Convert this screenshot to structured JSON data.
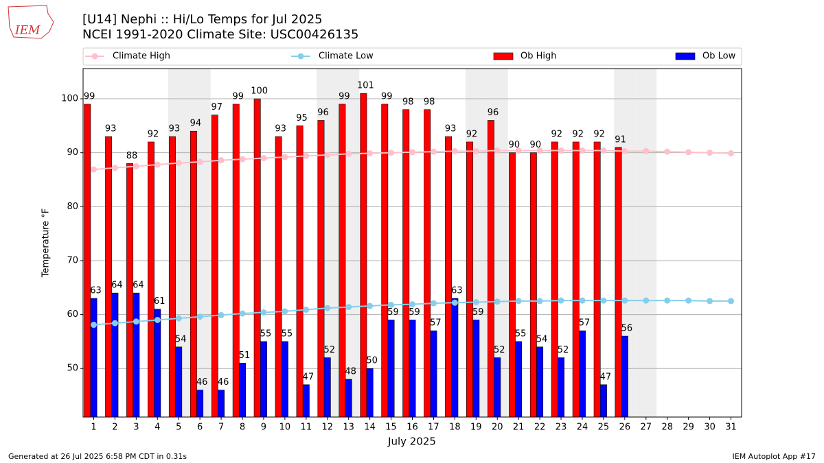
{
  "chart_data": {
    "type": "bar",
    "title": "[U14] Nephi :: Hi/Lo Temps for Jul 2025",
    "subtitle": "NCEI 1991-2020 Climate Site: USC00426135",
    "xlabel": "July 2025",
    "ylabel": "Temperature °F",
    "logo": "IEM",
    "footer_left": "Generated at 26 Jul 2025 6:58 PM CDT in 0.31s",
    "footer_right": "IEM Autoplot App #17",
    "categories": [
      "1",
      "2",
      "3",
      "4",
      "5",
      "6",
      "7",
      "8",
      "9",
      "10",
      "11",
      "12",
      "13",
      "14",
      "15",
      "16",
      "17",
      "18",
      "19",
      "20",
      "21",
      "22",
      "23",
      "24",
      "25",
      "26",
      "27",
      "28",
      "29",
      "30",
      "31"
    ],
    "shaded": [
      5,
      6,
      12,
      13,
      19,
      20,
      26,
      27
    ],
    "ylim": [
      41,
      105.6
    ],
    "yticks": [
      50,
      60,
      70,
      80,
      90,
      100
    ],
    "grid": true,
    "series": [
      {
        "name": "Climate High",
        "kind": "line",
        "color": "#ffc0cb",
        "values": [
          86.9,
          87.2,
          87.5,
          87.8,
          88.1,
          88.3,
          88.6,
          88.8,
          89.0,
          89.2,
          89.4,
          89.6,
          89.8,
          89.9,
          90.0,
          90.1,
          90.2,
          90.3,
          90.3,
          90.4,
          90.4,
          90.4,
          90.4,
          90.4,
          90.4,
          90.3,
          90.3,
          90.2,
          90.1,
          90.0,
          89.9
        ]
      },
      {
        "name": "Climate Low",
        "kind": "line",
        "color": "#87ceeb",
        "values": [
          58.1,
          58.4,
          58.7,
          59.0,
          59.3,
          59.6,
          59.9,
          60.2,
          60.4,
          60.6,
          60.9,
          61.2,
          61.4,
          61.6,
          61.8,
          61.9,
          62.1,
          62.2,
          62.3,
          62.4,
          62.5,
          62.5,
          62.6,
          62.6,
          62.6,
          62.6,
          62.6,
          62.6,
          62.6,
          62.5,
          62.5
        ]
      },
      {
        "name": "Ob High",
        "kind": "bar",
        "color": "#ff0000",
        "values": [
          99,
          93,
          88,
          92,
          93,
          94,
          97,
          99,
          100,
          93,
          95,
          96,
          99,
          101,
          99,
          98,
          98,
          93,
          92,
          96,
          90,
          90,
          92,
          92,
          92,
          91,
          null,
          null,
          null,
          null,
          null
        ]
      },
      {
        "name": "Ob Low",
        "kind": "bar",
        "color": "#0000ff",
        "values": [
          63,
          64,
          64,
          61,
          54,
          46,
          46,
          51,
          55,
          55,
          47,
          52,
          48,
          50,
          59,
          59,
          57,
          63,
          59,
          52,
          55,
          54,
          52,
          57,
          47,
          56,
          null,
          null,
          null,
          null,
          null
        ]
      }
    ]
  }
}
